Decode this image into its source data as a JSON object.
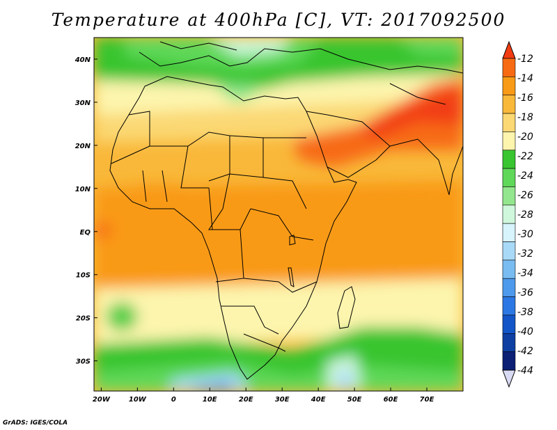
{
  "title": "Temperature at 400hPa [C], VT: 2017092500",
  "credit": "GrADS: IGES/COLA",
  "map": {
    "lon_ticks": [
      "20W",
      "10W",
      "0",
      "10E",
      "20E",
      "30E",
      "40E",
      "50E",
      "60E",
      "70E"
    ],
    "lat_ticks": [
      "40N",
      "30N",
      "20N",
      "10N",
      "EQ",
      "10S",
      "20S",
      "30S"
    ],
    "lon_range": [
      -22,
      80
    ],
    "lat_range": [
      -37,
      45
    ]
  },
  "colorbar": {
    "labels": [
      "-12",
      "-14",
      "-16",
      "-18",
      "-20",
      "-22",
      "-24",
      "-26",
      "-28",
      "-30",
      "-32",
      "-34",
      "-36",
      "-38",
      "-40",
      "-42",
      "-44"
    ],
    "colors": [
      "#f23c12",
      "#f76a12",
      "#f99a16",
      "#f9b83a",
      "#fbd873",
      "#fdf5ad",
      "#39c52f",
      "#5fd859",
      "#93e68d",
      "#cff7dc",
      "#d7f3fb",
      "#a8daf7",
      "#78bcf1",
      "#4d99ec",
      "#2b78e4",
      "#1255c9",
      "#0d3fa3",
      "#0b1f75",
      "#d9dbf5"
    ]
  }
}
